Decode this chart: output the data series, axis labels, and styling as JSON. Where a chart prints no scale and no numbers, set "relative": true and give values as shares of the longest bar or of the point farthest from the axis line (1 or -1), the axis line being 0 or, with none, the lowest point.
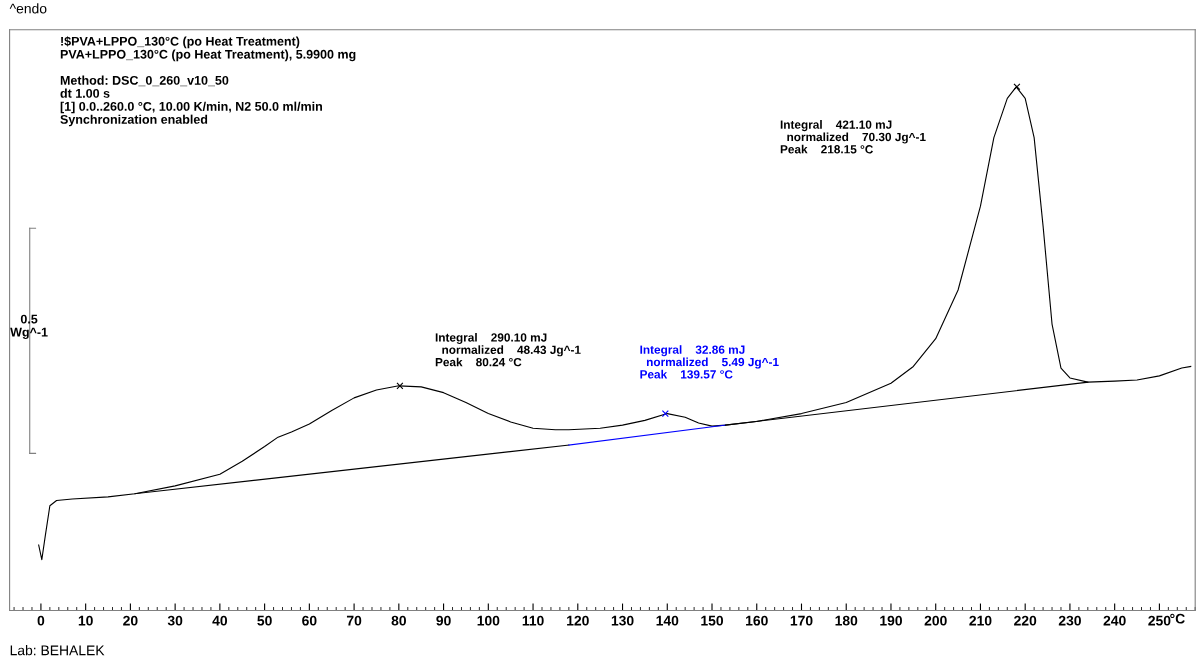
{
  "chart_data": {
    "type": "line",
    "relative": true,
    "xlabel": "°C",
    "xlim": [
      -7,
      258
    ],
    "xticks": [
      0,
      10,
      20,
      30,
      40,
      50,
      60,
      70,
      80,
      90,
      100,
      110,
      120,
      130,
      140,
      150,
      160,
      170,
      180,
      190,
      200,
      210,
      220,
      230,
      240,
      250
    ],
    "grid": false,
    "marker": "none",
    "line_style": "solid",
    "series": [
      {
        "color": "#000000",
        "x": [
          -0.5,
          0.2,
          1,
          2,
          3.5,
          7,
          15,
          21,
          30,
          40,
          45,
          50,
          53,
          56,
          60,
          65,
          70,
          75,
          80,
          85,
          90,
          95,
          100,
          105,
          110,
          115,
          118,
          125,
          130,
          135,
          140,
          144,
          147,
          150,
          153,
          160,
          170,
          180,
          190,
          195,
          200,
          205,
          210,
          213,
          216,
          218,
          220,
          222,
          224,
          226,
          228,
          230,
          234,
          240,
          245,
          250,
          255,
          257
        ],
        "values": [
          0.125,
          0.097,
          0.144,
          0.2,
          0.21,
          0.213,
          0.217,
          0.223,
          0.238,
          0.26,
          0.285,
          0.313,
          0.331,
          0.341,
          0.356,
          0.382,
          0.406,
          0.421,
          0.429,
          0.427,
          0.416,
          0.397,
          0.376,
          0.36,
          0.348,
          0.345,
          0.345,
          0.348,
          0.354,
          0.363,
          0.376,
          0.369,
          0.358,
          0.352,
          0.354,
          0.361,
          0.376,
          0.397,
          0.434,
          0.466,
          0.519,
          0.612,
          0.772,
          0.903,
          0.978,
          1,
          0.978,
          0.903,
          0.734,
          0.547,
          0.463,
          0.444,
          0.436,
          0.438,
          0.44,
          0.448,
          0.463,
          0.466
        ]
      },
      {
        "color": "#000000",
        "x": [
          21,
          118
        ],
        "values": [
          0.223,
          0.316
        ]
      },
      {
        "color": "#0000ff",
        "x": [
          118,
          153
        ],
        "values": [
          0.316,
          0.354
        ]
      },
      {
        "color": "#000000",
        "x": [
          153,
          234
        ],
        "values": [
          0.354,
          0.436
        ]
      },
      {
        "type": "scatter",
        "marker": "cross",
        "colors": [
          "#000000",
          "#0000ff",
          "#000000"
        ],
        "x": [
          80.24,
          139.57,
          218.15
        ],
        "values": [
          0.429,
          0.376,
          1
        ]
      }
    ],
    "annotations": [
      "^endo",
      "!$PVA+LPPO_130°C (po Heat Treatment)\nPVA+LPPO_130°C (po Heat Treatment), 5.9900 mg\n\nMethod: DSC_0_260_v10_50\ndt 1.00 s\n[1] 0.0..260.0 °C, 10.00 K/min, N2 50.0 ml/min\nSynchronization enabled",
      "0.5\nWg^-1",
      "Lab: BEHALEK",
      "Integral    290.10 mJ\n  normalized    48.43 Jg^-1\nPeak    80.24 °C",
      "Integral    32.86 mJ\n  normalized    5.49 Jg^-1\nPeak    139.57 °C",
      "Integral    421.10 mJ\n  normalized    70.30 Jg^-1\nPeak    218.15 °C"
    ]
  }
}
